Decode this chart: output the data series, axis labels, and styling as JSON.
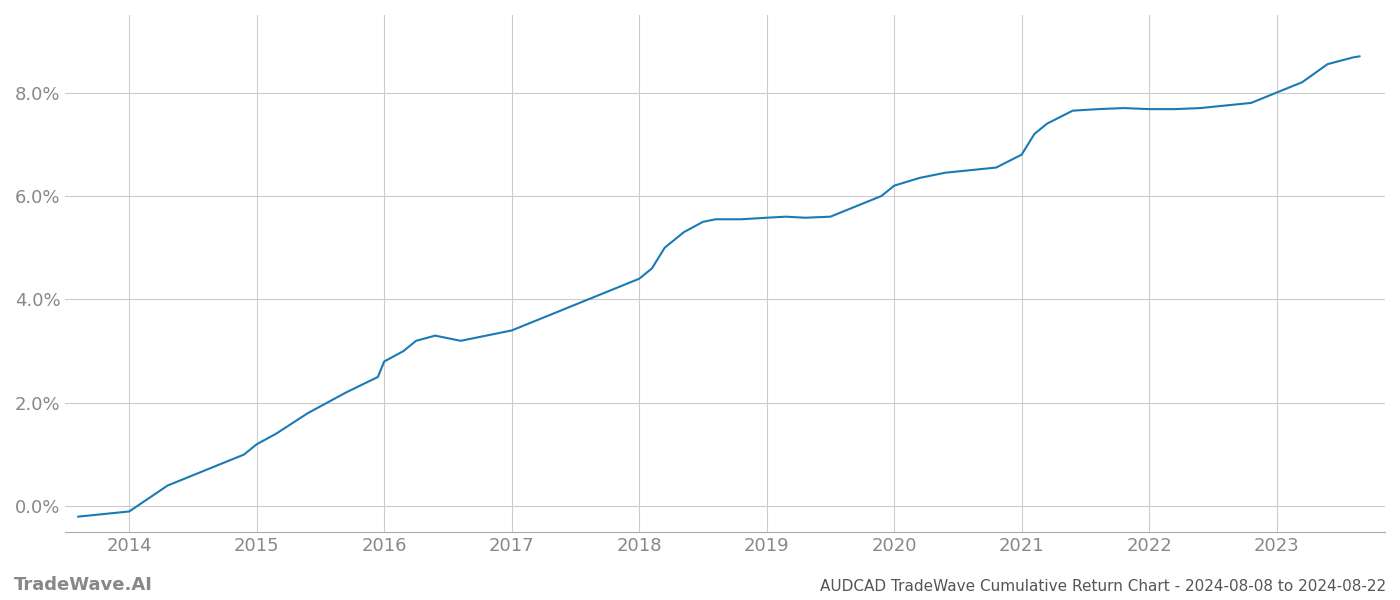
{
  "title": "AUDCAD TradeWave Cumulative Return Chart - 2024-08-08 to 2024-08-22",
  "watermark": "TradeWave.AI",
  "line_color": "#1a7ab5",
  "background_color": "#ffffff",
  "grid_color": "#cccccc",
  "x_values": [
    2013.6,
    2014.0,
    2014.3,
    2014.6,
    2014.9,
    2015.0,
    2015.15,
    2015.4,
    2015.7,
    2015.95,
    2016.0,
    2016.15,
    2016.25,
    2016.4,
    2016.6,
    2016.8,
    2017.0,
    2017.2,
    2017.4,
    2017.6,
    2017.8,
    2018.0,
    2018.1,
    2018.2,
    2018.35,
    2018.5,
    2018.6,
    2018.8,
    2019.0,
    2019.15,
    2019.3,
    2019.5,
    2019.7,
    2019.9,
    2020.0,
    2020.2,
    2020.4,
    2020.6,
    2020.8,
    2021.0,
    2021.1,
    2021.2,
    2021.4,
    2021.6,
    2021.8,
    2022.0,
    2022.2,
    2022.4,
    2022.6,
    2022.8,
    2023.0,
    2023.2,
    2023.4,
    2023.6,
    2023.65
  ],
  "y_values": [
    -0.002,
    -0.001,
    0.004,
    0.007,
    0.01,
    0.012,
    0.014,
    0.018,
    0.022,
    0.025,
    0.028,
    0.03,
    0.032,
    0.033,
    0.032,
    0.033,
    0.034,
    0.036,
    0.038,
    0.04,
    0.042,
    0.044,
    0.046,
    0.05,
    0.053,
    0.055,
    0.0555,
    0.0555,
    0.0558,
    0.056,
    0.0558,
    0.056,
    0.058,
    0.06,
    0.062,
    0.0635,
    0.0645,
    0.065,
    0.0655,
    0.068,
    0.072,
    0.074,
    0.0765,
    0.0768,
    0.077,
    0.0768,
    0.0768,
    0.077,
    0.0775,
    0.078,
    0.08,
    0.082,
    0.0855,
    0.0868,
    0.087
  ],
  "xlim": [
    2013.5,
    2023.85
  ],
  "ylim": [
    -0.005,
    0.095
  ],
  "yticks": [
    0.0,
    0.02,
    0.04,
    0.06,
    0.08
  ],
  "xticks": [
    2014,
    2015,
    2016,
    2017,
    2018,
    2019,
    2020,
    2021,
    2022,
    2023
  ],
  "line_width": 1.5,
  "tick_label_color": "#888888",
  "title_color": "#555555",
  "watermark_color": "#888888",
  "title_fontsize": 11,
  "tick_fontsize": 13,
  "watermark_fontsize": 13
}
